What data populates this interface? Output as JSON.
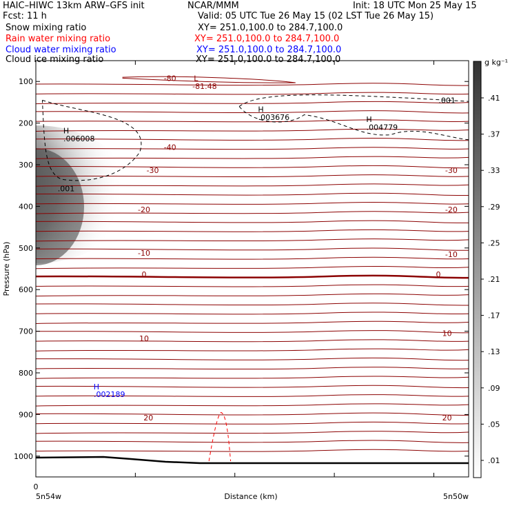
{
  "header": {
    "model": "HAIC–HIWC 13km ARW–GFS init",
    "center": "NCAR/MMM",
    "init": "Init: 18 UTC Mon 25 May 15",
    "fcst": "Fcst:    11 h",
    "valid": "Valid: 05 UTC Tue 26 May 15 (02 LST Tue 26 May 15)",
    "fields": [
      {
        "name": "Snow mixing ratio",
        "xy": "XY= 251.0,100.0 to 284.7,100.0",
        "color": "#000000"
      },
      {
        "name": "Rain water mixing ratio",
        "xy": "XY= 251.0,100.0 to 284.7,100.0",
        "color": "#ff0000"
      },
      {
        "name": "Cloud water mixing ratio",
        "xy": "XY= 251.0,100.0 to 284.7,100.0",
        "color": "#0000ff"
      },
      {
        "name": "Cloud ice mixing ratio",
        "xy": "XY= 251.0,100.0 to 284.7,100.0",
        "color": "#000000"
      }
    ]
  },
  "chart_data": {
    "type": "contour-cross-section",
    "ylabel": "Pressure (hPa)",
    "xlabel": "Distance (km)",
    "x_start_label": "5n54w",
    "x_end_label": "5n50w",
    "x_origin_label": "0",
    "yticks": [
      100,
      200,
      300,
      400,
      500,
      600,
      700,
      800,
      900,
      1000
    ],
    "ylim": [
      1050,
      50
    ],
    "colorbar": {
      "unit": "g kg⁻¹",
      "levels": [
        ".01",
        ".05",
        ".09",
        ".13",
        ".17",
        ".21",
        ".25",
        ".29",
        ".33",
        ".37",
        ".41"
      ]
    },
    "temperature_labels": [
      {
        "text": "-80",
        "x": 0.31,
        "p": 92
      },
      {
        "text": "L",
        "x": 0.37,
        "p": 92
      },
      {
        "text": "-81.48",
        "x": 0.39,
        "p": 111
      },
      {
        "text": "-40",
        "x": 0.31,
        "p": 258
      },
      {
        "text": "-30",
        "x": 0.27,
        "p": 313
      },
      {
        "text": "-30",
        "x": 0.96,
        "p": 313
      },
      {
        "text": "-20",
        "x": 0.25,
        "p": 408
      },
      {
        "text": "-20",
        "x": 0.96,
        "p": 408
      },
      {
        "text": "-10",
        "x": 0.25,
        "p": 512
      },
      {
        "text": "-10",
        "x": 0.96,
        "p": 515
      },
      {
        "text": "0",
        "x": 0.25,
        "p": 563
      },
      {
        "text": "0",
        "x": 0.93,
        "p": 563
      },
      {
        "text": "10",
        "x": 0.25,
        "p": 717
      },
      {
        "text": "10",
        "x": 0.95,
        "p": 705
      },
      {
        "text": "20",
        "x": 0.26,
        "p": 908
      },
      {
        "text": "20",
        "x": 0.95,
        "p": 908
      }
    ],
    "snow_labels": [
      {
        "text": "H",
        "x": 0.07,
        "p": 218
      },
      {
        "text": ".006008",
        "x": 0.1,
        "p": 237
      },
      {
        "text": ".001",
        "x": 0.07,
        "p": 357
      },
      {
        "text": "H",
        "x": 0.52,
        "p": 167
      },
      {
        "text": ".003676",
        "x": 0.55,
        "p": 186
      },
      {
        "text": ".001",
        "x": 0.95,
        "p": 145
      },
      {
        "text": "H",
        "x": 0.77,
        "p": 191
      },
      {
        "text": ".004779",
        "x": 0.8,
        "p": 210
      }
    ],
    "cloud_water_labels": [
      {
        "text": "H",
        "x": 0.14,
        "p": 833
      },
      {
        "text": ".002189",
        "x": 0.17,
        "p": 851
      }
    ]
  }
}
